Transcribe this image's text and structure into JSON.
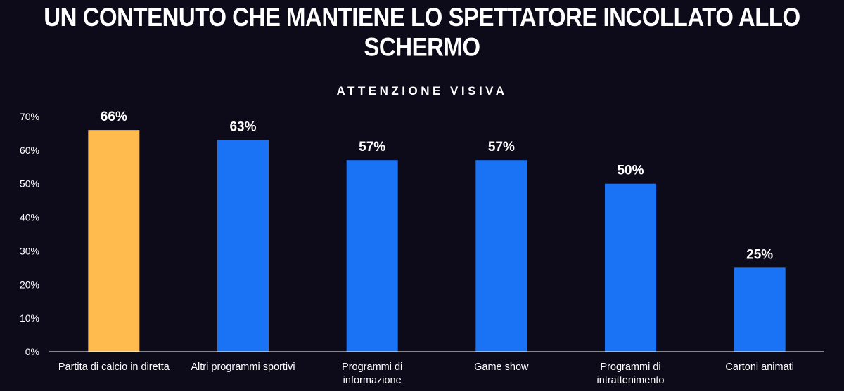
{
  "page": {
    "title": "UN CONTENUTO CHE MANTIENE LO SPETTATORE INCOLLATO ALLO SCHERMO"
  },
  "colors": {
    "background": "#0d0a1a",
    "highlight_bar": "#ffbb4d",
    "default_bar": "#1a73f5",
    "axis": "#ffffff",
    "text": "#ffffff"
  },
  "chart_data": {
    "type": "bar",
    "title": "ATTENZIONE VISIVA",
    "xlabel": "",
    "ylabel": "",
    "ylim": [
      0,
      70
    ],
    "yticks": [
      "0%",
      "10%",
      "20%",
      "30%",
      "40%",
      "50%",
      "60%",
      "70%"
    ],
    "grid": false,
    "categories": [
      [
        "Partita di calcio in diretta"
      ],
      [
        "Altri programmi sportivi"
      ],
      [
        "Programmi di",
        "informazione"
      ],
      [
        "Game show"
      ],
      [
        "Programmi di",
        "intrattenimento"
      ],
      [
        "Cartoni animati"
      ]
    ],
    "values": [
      66,
      63,
      57,
      57,
      50,
      25
    ],
    "data_labels": [
      "66%",
      "63%",
      "57%",
      "57%",
      "50%",
      "25%"
    ],
    "highlight_index": 0
  }
}
